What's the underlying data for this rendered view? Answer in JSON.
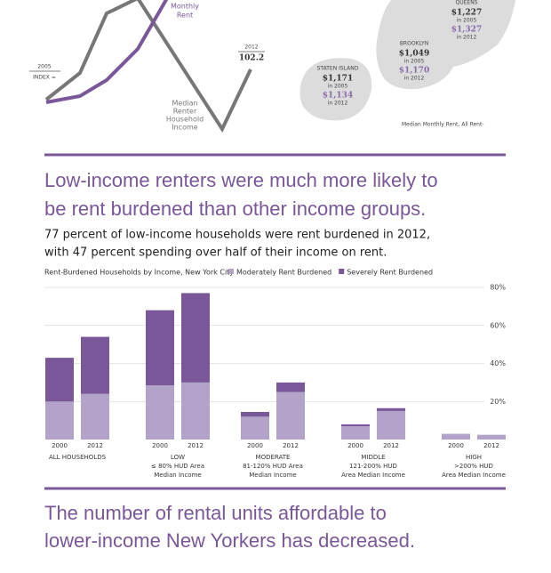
{
  "top": {
    "line_labels": {
      "rent": [
        "Monthly",
        "Rent"
      ],
      "start_year": "2005",
      "index": "INDEX =",
      "end_year": "2012",
      "end_value": "102.2",
      "income": [
        "Median",
        "Renter",
        "Household",
        "Income"
      ]
    },
    "map": {
      "boroughs": [
        {
          "name": "QUEENS",
          "v2005": "$1,227",
          "l2005": "in 2005",
          "v2012": "$1,327",
          "l2012": "in 2012"
        },
        {
          "name": "BROOKLYN",
          "v2005": "$1,049",
          "l2005": "in 2005",
          "v2012": "$1,170",
          "l2012": "in 2012"
        },
        {
          "name": "STATEN ISLAND",
          "v2005": "$1,171",
          "l2005": "in 2005",
          "v2012": "$1,134",
          "l2012": "in 2012"
        }
      ],
      "caption": "Median Monthly Rent, All Rent-"
    }
  },
  "section1": {
    "headline": [
      "Low-income renters were much more likely to",
      "be rent burdened than other income groups."
    ],
    "subhead": [
      "77 percent of low-income households were rent burdened in 2012,",
      "with 47 percent spending over half of their income on rent."
    ]
  },
  "chart_data": {
    "type": "stacked_bar",
    "title": "Rent-Burdened Households by Income, New York City",
    "categories": [
      "2000",
      "2012",
      "2000",
      "2012",
      "2000",
      "2012",
      "2000",
      "2012",
      "2000",
      "2012"
    ],
    "groups": [
      [
        "ALL HOUSEHOLDS"
      ],
      [
        "LOW",
        "≤ 80% HUD Area",
        "Median Income"
      ],
      [
        "MODERATE",
        "81-120% HUD Area",
        "Median Income"
      ],
      [
        "MIDDLE",
        "121-200% HUD",
        "Area Median Income"
      ],
      [
        "HIGH",
        ">200% HUD",
        "Area Median Income"
      ]
    ],
    "series": [
      {
        "name": "Moderately Rent Burdened",
        "color": "#b3a3c9",
        "values": [
          20,
          24,
          28.5,
          30,
          12,
          25,
          7,
          15,
          3,
          2.5
        ]
      },
      {
        "name": "Severely Rent Burdened",
        "color": "#7a5798",
        "values": [
          23,
          30,
          39.5,
          47,
          2.5,
          5,
          1,
          1.5,
          0,
          0
        ]
      }
    ],
    "ylim": [
      0,
      80
    ],
    "yticks": [
      {
        "value": 20,
        "label": "20%"
      },
      {
        "value": 40,
        "label": "40%"
      },
      {
        "value": 60,
        "label": "60%"
      },
      {
        "value": 80,
        "label": "80%"
      }
    ],
    "grid": true
  },
  "section2": {
    "headline": [
      "The number of rental units affordable to",
      "lower-income New Yorkers has decreased."
    ]
  }
}
